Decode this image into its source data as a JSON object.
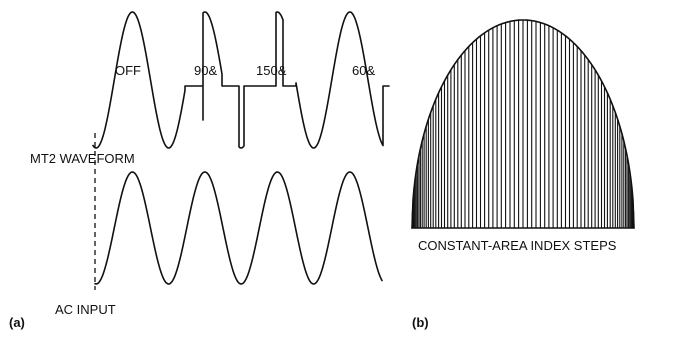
{
  "panel_a": {
    "tag": "(a)",
    "mt2_label": "MT2 WAVEFORM",
    "ac_label": "AC INPUT",
    "segments": [
      "OFF",
      "90&",
      "150&",
      "60&"
    ]
  },
  "panel_b": {
    "tag": "(b)",
    "caption": "CONSTANT-AREA INDEX STEPS"
  },
  "colors": {
    "ink": "#111111",
    "background": "#ffffff"
  }
}
